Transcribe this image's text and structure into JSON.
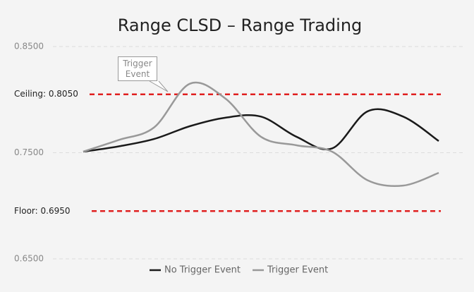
{
  "chart_data": {
    "type": "line",
    "title": "Range CLSD – Range Trading",
    "categories": [
      null,
      null,
      null,
      null,
      null,
      null,
      null,
      null,
      null,
      null,
      null
    ],
    "series": [
      {
        "name": "No Trigger Event",
        "color": "#1a1a1a",
        "values": [
          0.751,
          0.756,
          0.763,
          0.775,
          0.783,
          0.784,
          0.765,
          0.754,
          0.789,
          0.784,
          0.761
        ]
      },
      {
        "name": "Trigger Event",
        "color": "#999999",
        "values": [
          0.751,
          0.762,
          0.774,
          0.815,
          0.801,
          0.765,
          0.757,
          0.751,
          0.724,
          0.719,
          0.731
        ]
      }
    ],
    "ylim": [
      0.65,
      0.85
    ],
    "yticks": [
      {
        "value": 0.65,
        "label": "0.6500"
      },
      {
        "value": 0.75,
        "label": "0.7500"
      },
      {
        "value": 0.85,
        "label": "0.8500"
      }
    ],
    "grid": true,
    "ceiling": {
      "value": 0.805,
      "label": "Ceiling: 0.8050",
      "color": "#e02020"
    },
    "floor": {
      "value": 0.695,
      "label": "Floor: 0.6950",
      "color": "#e02020"
    },
    "annotation": "Trigger Event",
    "legend": "bottom"
  }
}
